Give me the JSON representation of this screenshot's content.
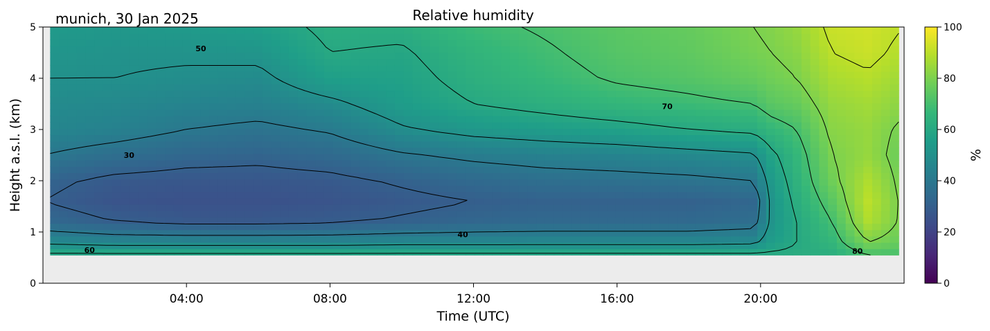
{
  "chart_data": {
    "type": "heatmap",
    "title": "Relative humidity",
    "location_label": "munich, 30 Jan 2025",
    "xlabel": "Time (UTC)",
    "ylabel": "Height a.s.l. (km)",
    "colorbar_label": "%",
    "x_ticks": [
      "04:00",
      "08:00",
      "12:00",
      "16:00",
      "20:00"
    ],
    "x_tick_hours": [
      4,
      8,
      12,
      16,
      20
    ],
    "xlim_hours": [
      0,
      24
    ],
    "y_ticks": [
      "0",
      "1",
      "2",
      "3",
      "4",
      "5"
    ],
    "y_tick_values": [
      0,
      1,
      2,
      3,
      4,
      5
    ],
    "ylim": [
      0,
      5
    ],
    "data_bottom_km": 0.55,
    "colorbar_ticks": [
      "0",
      "20",
      "40",
      "60",
      "80",
      "100"
    ],
    "colorbar_values": [
      0,
      20,
      40,
      60,
      80,
      100
    ],
    "colorbar_range": [
      0,
      100
    ],
    "colormap": "viridis",
    "contour_labels": [
      {
        "text": "30",
        "t": 2.4,
        "z": 2.5
      },
      {
        "text": "40",
        "t": 11.7,
        "z": 0.95
      },
      {
        "text": "50",
        "t": 4.4,
        "z": 4.58
      },
      {
        "text": "60",
        "t": 1.3,
        "z": 0.65
      },
      {
        "text": "70",
        "t": 17.4,
        "z": 3.45
      },
      {
        "text": "80",
        "t": 22.7,
        "z": 0.63
      }
    ],
    "profile_times": [
      0,
      2,
      4,
      6,
      8,
      10,
      12,
      14,
      16,
      18,
      19.8,
      20.3,
      21,
      22,
      23,
      24
    ],
    "profile_heights_km": [
      0.55,
      0.8,
      1.2,
      1.6,
      2.0,
      2.5,
      3.0,
      3.5,
      4.0,
      4.5,
      5.0
    ],
    "rh_profiles": [
      [
        62,
        48,
        34,
        30,
        32,
        40,
        46,
        48,
        50,
        52,
        54
      ],
      [
        62,
        46,
        30,
        26,
        28,
        36,
        44,
        47,
        50,
        51,
        53
      ],
      [
        62,
        46,
        28,
        25,
        27,
        33,
        40,
        45,
        49,
        51,
        54
      ],
      [
        62,
        46,
        28,
        25,
        27,
        32,
        38,
        44,
        48,
        52,
        56
      ],
      [
        62,
        46,
        29,
        26,
        28,
        34,
        41,
        48,
        56,
        60,
        62
      ],
      [
        62,
        47,
        31,
        28,
        31,
        39,
        49,
        55,
        57,
        59,
        62
      ],
      [
        62,
        47,
        33,
        30,
        34,
        42,
        53,
        60,
        63,
        65,
        68
      ],
      [
        62,
        47,
        34,
        31,
        36,
        44,
        55,
        63,
        67,
        69,
        71
      ],
      [
        62,
        47,
        34,
        31,
        37,
        45,
        57,
        66,
        71,
        73,
        74
      ],
      [
        62,
        47,
        34,
        31,
        38,
        47,
        60,
        68,
        73,
        75,
        76
      ],
      [
        62,
        48,
        36,
        33,
        40,
        49,
        62,
        70,
        76,
        79,
        80
      ],
      [
        62,
        55,
        52,
        52,
        54,
        58,
        66,
        74,
        78,
        80,
        81
      ],
      [
        62,
        60,
        60,
        62,
        64,
        66,
        70,
        76,
        80,
        82,
        84
      ],
      [
        62,
        66,
        70,
        74,
        78,
        80,
        82,
        84,
        87,
        90,
        92
      ],
      [
        70,
        80,
        88,
        90,
        88,
        84,
        84,
        86,
        89,
        92,
        93
      ],
      [
        70,
        76,
        78,
        78,
        77,
        76,
        78,
        82,
        85,
        88,
        90
      ]
    ]
  }
}
